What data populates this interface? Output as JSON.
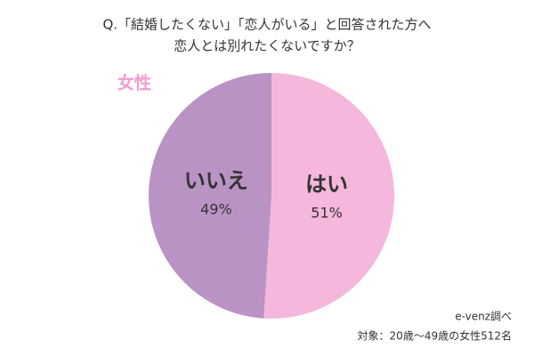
{
  "chart_data": {
    "type": "pie",
    "title": [
      "Q.「結婚したくない」「恋人がいる」と回答された方へ",
      "恋人とは別れたくないですか？"
    ],
    "subtitle": "女性",
    "categories": [
      "はい",
      "いいえ"
    ],
    "values": [
      51,
      49
    ],
    "value_labels": [
      "51%",
      "49%"
    ],
    "colors": [
      "#f5b7dc",
      "#b893c3"
    ],
    "source": "e-venz調べ",
    "note": "対象：20歳〜49歳の女性512名"
  }
}
